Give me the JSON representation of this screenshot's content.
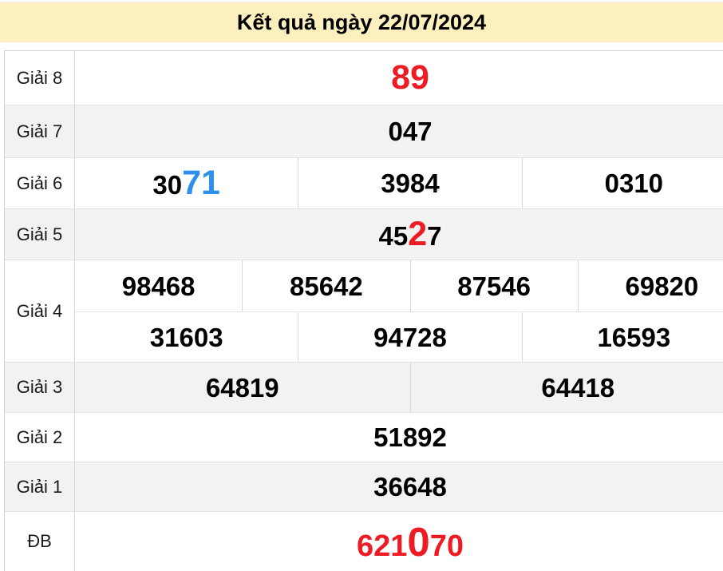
{
  "title": "Kết quả ngày 22/07/2024",
  "colors": {
    "header_bg": "#FCF1BE",
    "row_bg": "#FFFFFF",
    "row_alt_bg": "#F2F2F2",
    "border": "#D6D6D6",
    "red": "#ED1C24",
    "blue": "#2E90EA",
    "text": "#000000"
  },
  "table": {
    "rows": [
      {
        "label": "Giải 8",
        "shade": "white",
        "lines": [
          [
            [
              {
                "t": "89",
                "color": "red",
                "size": "big"
              }
            ]
          ]
        ]
      },
      {
        "label": "Giải 7",
        "shade": "alt",
        "lines": [
          [
            [
              {
                "t": "047"
              }
            ]
          ]
        ]
      },
      {
        "label": "Giải 6",
        "shade": "white",
        "lines": [
          [
            [
              {
                "t": "30"
              },
              {
                "t": "71",
                "color": "blue",
                "size": "big"
              }
            ],
            [
              {
                "t": "3984"
              }
            ],
            [
              {
                "t": "0310"
              }
            ]
          ]
        ]
      },
      {
        "label": "Giải 5",
        "shade": "alt",
        "lines": [
          [
            [
              {
                "t": "45"
              },
              {
                "t": "2",
                "color": "red",
                "size": "big"
              },
              {
                "t": "7"
              }
            ]
          ]
        ]
      },
      {
        "label": "Giải 4",
        "shade": "white",
        "lines": [
          [
            [
              {
                "t": "98468"
              }
            ],
            [
              {
                "t": "85642"
              }
            ],
            [
              {
                "t": "87546"
              }
            ],
            [
              {
                "t": "69820"
              }
            ]
          ],
          [
            [
              {
                "t": "31603"
              }
            ],
            [
              {
                "t": "94728"
              }
            ],
            [
              {
                "t": "16593"
              }
            ]
          ]
        ]
      },
      {
        "label": "Giải 3",
        "shade": "alt",
        "lines": [
          [
            [
              {
                "t": "64819"
              }
            ],
            [
              {
                "t": "64418"
              }
            ]
          ]
        ]
      },
      {
        "label": "Giải 2",
        "shade": "white",
        "lines": [
          [
            [
              {
                "t": "51892"
              }
            ]
          ]
        ]
      },
      {
        "label": "Giải 1",
        "shade": "alt",
        "lines": [
          [
            [
              {
                "t": "36648"
              }
            ]
          ]
        ]
      },
      {
        "label": "ĐB",
        "shade": "white",
        "special": true,
        "lines": [
          [
            [
              {
                "t": "621",
                "color": "red"
              },
              {
                "t": "0",
                "color": "red",
                "size": "big"
              },
              {
                "t": "70",
                "color": "red"
              }
            ]
          ]
        ]
      }
    ]
  }
}
